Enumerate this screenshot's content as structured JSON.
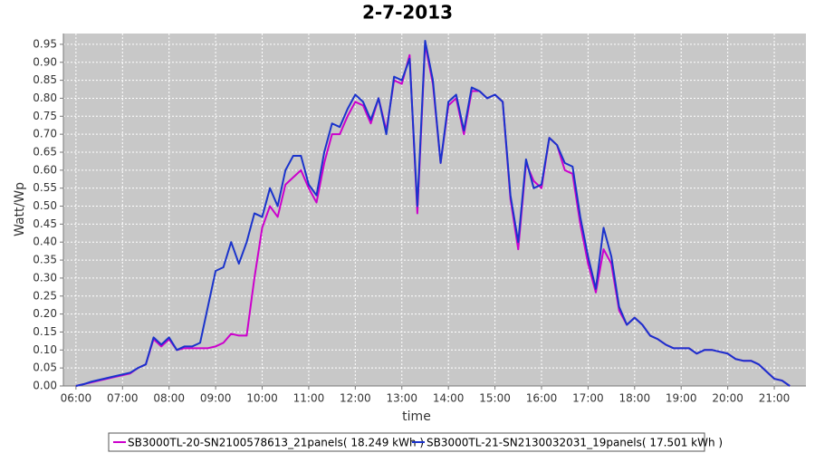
{
  "chart_data": {
    "type": "line",
    "title": "2-7-2013",
    "x_label": "time",
    "y_label": "Watt/Wp",
    "x": [
      6,
      6.167,
      6.333,
      6.5,
      6.667,
      6.833,
      7,
      7.167,
      7.333,
      7.5,
      7.667,
      7.833,
      8,
      8.167,
      8.333,
      8.5,
      8.667,
      8.833,
      9,
      9.167,
      9.333,
      9.5,
      9.667,
      9.833,
      10,
      10.167,
      10.333,
      10.5,
      10.667,
      10.833,
      11,
      11.167,
      11.333,
      11.5,
      11.667,
      11.833,
      12,
      12.167,
      12.333,
      12.5,
      12.667,
      12.833,
      13,
      13.167,
      13.333,
      13.5,
      13.667,
      13.833,
      14,
      14.167,
      14.333,
      14.5,
      14.667,
      14.833,
      15,
      15.167,
      15.333,
      15.5,
      15.667,
      15.833,
      16,
      16.167,
      16.333,
      16.5,
      16.667,
      16.833,
      17,
      17.167,
      17.333,
      17.5,
      17.667,
      17.833,
      18,
      18.167,
      18.333,
      18.5,
      18.667,
      18.833,
      19,
      19.167,
      19.333,
      19.5,
      19.667,
      19.833,
      20,
      20.167,
      20.333,
      20.5,
      20.667,
      20.833,
      21,
      21.167,
      21.333
    ],
    "series": [
      {
        "name": "SB3000TL-20-SN2100578613_21panels( 18.249 kWh )",
        "color": "#cc00cc",
        "values": [
          0,
          0.005,
          0.01,
          0.015,
          0.02,
          0.025,
          0.03,
          0.035,
          0.05,
          0.06,
          0.13,
          0.11,
          0.13,
          0.1,
          0.105,
          0.105,
          0.105,
          0.105,
          0.11,
          0.12,
          0.145,
          0.14,
          0.14,
          0.3,
          0.44,
          0.5,
          0.47,
          0.56,
          0.58,
          0.6,
          0.55,
          0.51,
          0.62,
          0.7,
          0.7,
          0.75,
          0.79,
          0.78,
          0.73,
          0.8,
          0.71,
          0.85,
          0.84,
          0.92,
          0.48,
          0.95,
          0.84,
          0.62,
          0.78,
          0.8,
          0.7,
          0.82,
          0.82,
          0.8,
          0.81,
          0.79,
          0.52,
          0.38,
          0.62,
          0.57,
          0.55,
          0.69,
          0.67,
          0.6,
          0.59,
          0.45,
          0.34,
          0.26,
          0.38,
          0.34,
          0.21,
          0.17,
          0.19,
          0.17,
          0.14,
          0.13,
          0.115,
          0.105,
          0.105,
          0.105,
          0.09,
          0.1,
          0.1,
          0.095,
          0.09,
          0.075,
          0.07,
          0.07,
          0.06,
          0.04,
          0.02,
          0.015,
          0
        ]
      },
      {
        "name": "SB3000TL-21-SN2130032031_19panels( 17.501 kWh )",
        "color": "#1a33cc",
        "values": [
          0,
          0.005,
          0.012,
          0.017,
          0.022,
          0.027,
          0.032,
          0.037,
          0.05,
          0.06,
          0.135,
          0.115,
          0.135,
          0.1,
          0.11,
          0.11,
          0.12,
          0.22,
          0.32,
          0.33,
          0.4,
          0.34,
          0.4,
          0.48,
          0.47,
          0.55,
          0.5,
          0.6,
          0.64,
          0.64,
          0.56,
          0.53,
          0.65,
          0.73,
          0.72,
          0.77,
          0.81,
          0.79,
          0.74,
          0.8,
          0.7,
          0.86,
          0.85,
          0.91,
          0.5,
          0.96,
          0.85,
          0.62,
          0.79,
          0.81,
          0.71,
          0.83,
          0.82,
          0.8,
          0.81,
          0.79,
          0.53,
          0.4,
          0.63,
          0.55,
          0.56,
          0.69,
          0.67,
          0.62,
          0.61,
          0.47,
          0.36,
          0.27,
          0.44,
          0.36,
          0.22,
          0.17,
          0.19,
          0.17,
          0.14,
          0.13,
          0.115,
          0.105,
          0.105,
          0.105,
          0.09,
          0.1,
          0.1,
          0.095,
          0.09,
          0.075,
          0.07,
          0.07,
          0.06,
          0.04,
          0.02,
          0.015,
          0
        ]
      }
    ],
    "xlim": [
      5.73,
      21.68
    ],
    "xticks": [
      {
        "value": 6,
        "label": "06:00"
      },
      {
        "value": 7,
        "label": "07:00"
      },
      {
        "value": 8,
        "label": "08:00"
      },
      {
        "value": 9,
        "label": "09:00"
      },
      {
        "value": 10,
        "label": "10:00"
      },
      {
        "value": 11,
        "label": "11:00"
      },
      {
        "value": 12,
        "label": "12:00"
      },
      {
        "value": 13,
        "label": "13:00"
      },
      {
        "value": 14,
        "label": "14:00"
      },
      {
        "value": 15,
        "label": "15:00"
      },
      {
        "value": 16,
        "label": "16:00"
      },
      {
        "value": 17,
        "label": "17:00"
      },
      {
        "value": 18,
        "label": "18:00"
      },
      {
        "value": 19,
        "label": "19:00"
      },
      {
        "value": 20,
        "label": "20:00"
      },
      {
        "value": 21,
        "label": "21:00"
      }
    ],
    "ylim": [
      0,
      0.98
    ],
    "yticks": [
      {
        "value": 0,
        "label": "0.00"
      },
      0.05,
      {
        "value": 0.1,
        "label": "0.10"
      },
      0.15,
      {
        "value": 0.2,
        "label": "0.20"
      },
      0.25,
      {
        "value": 0.3,
        "label": "0.30"
      },
      0.35,
      {
        "value": 0.4,
        "label": "0.40"
      },
      0.45,
      {
        "value": 0.5,
        "label": "0.50"
      },
      0.55,
      {
        "value": 0.6,
        "label": "0.60"
      },
      0.65,
      {
        "value": 0.7,
        "label": "0.70"
      },
      0.75,
      {
        "value": 0.8,
        "label": "0.80"
      },
      0.85,
      {
        "value": 0.9,
        "label": "0.90"
      },
      0.95
    ],
    "grid": true
  }
}
